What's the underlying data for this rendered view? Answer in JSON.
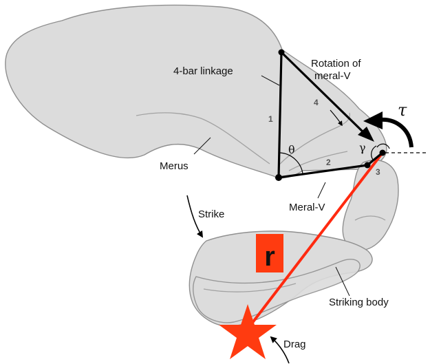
{
  "labels": {
    "four_bar_linkage": "4-bar linkage",
    "rotation_line1": "Rotation of",
    "rotation_line2": "meral-V",
    "merus": "Merus",
    "meral_v": "Meral-V",
    "strike": "Strike",
    "striking_body": "Striking body",
    "drag": "Drag",
    "r": "r"
  },
  "link_numbers": [
    "1",
    "2",
    "3",
    "4"
  ],
  "angles": {
    "theta": "θ",
    "gamma": "γ",
    "torque": "τ"
  },
  "colors": {
    "shape_fill": "#dcdcdc",
    "shape_stroke": "#8f8f8f",
    "link": "#000000",
    "moment_arm": "#ff2a10",
    "r_box": "#ff3b10",
    "star": "#ff3b10"
  }
}
